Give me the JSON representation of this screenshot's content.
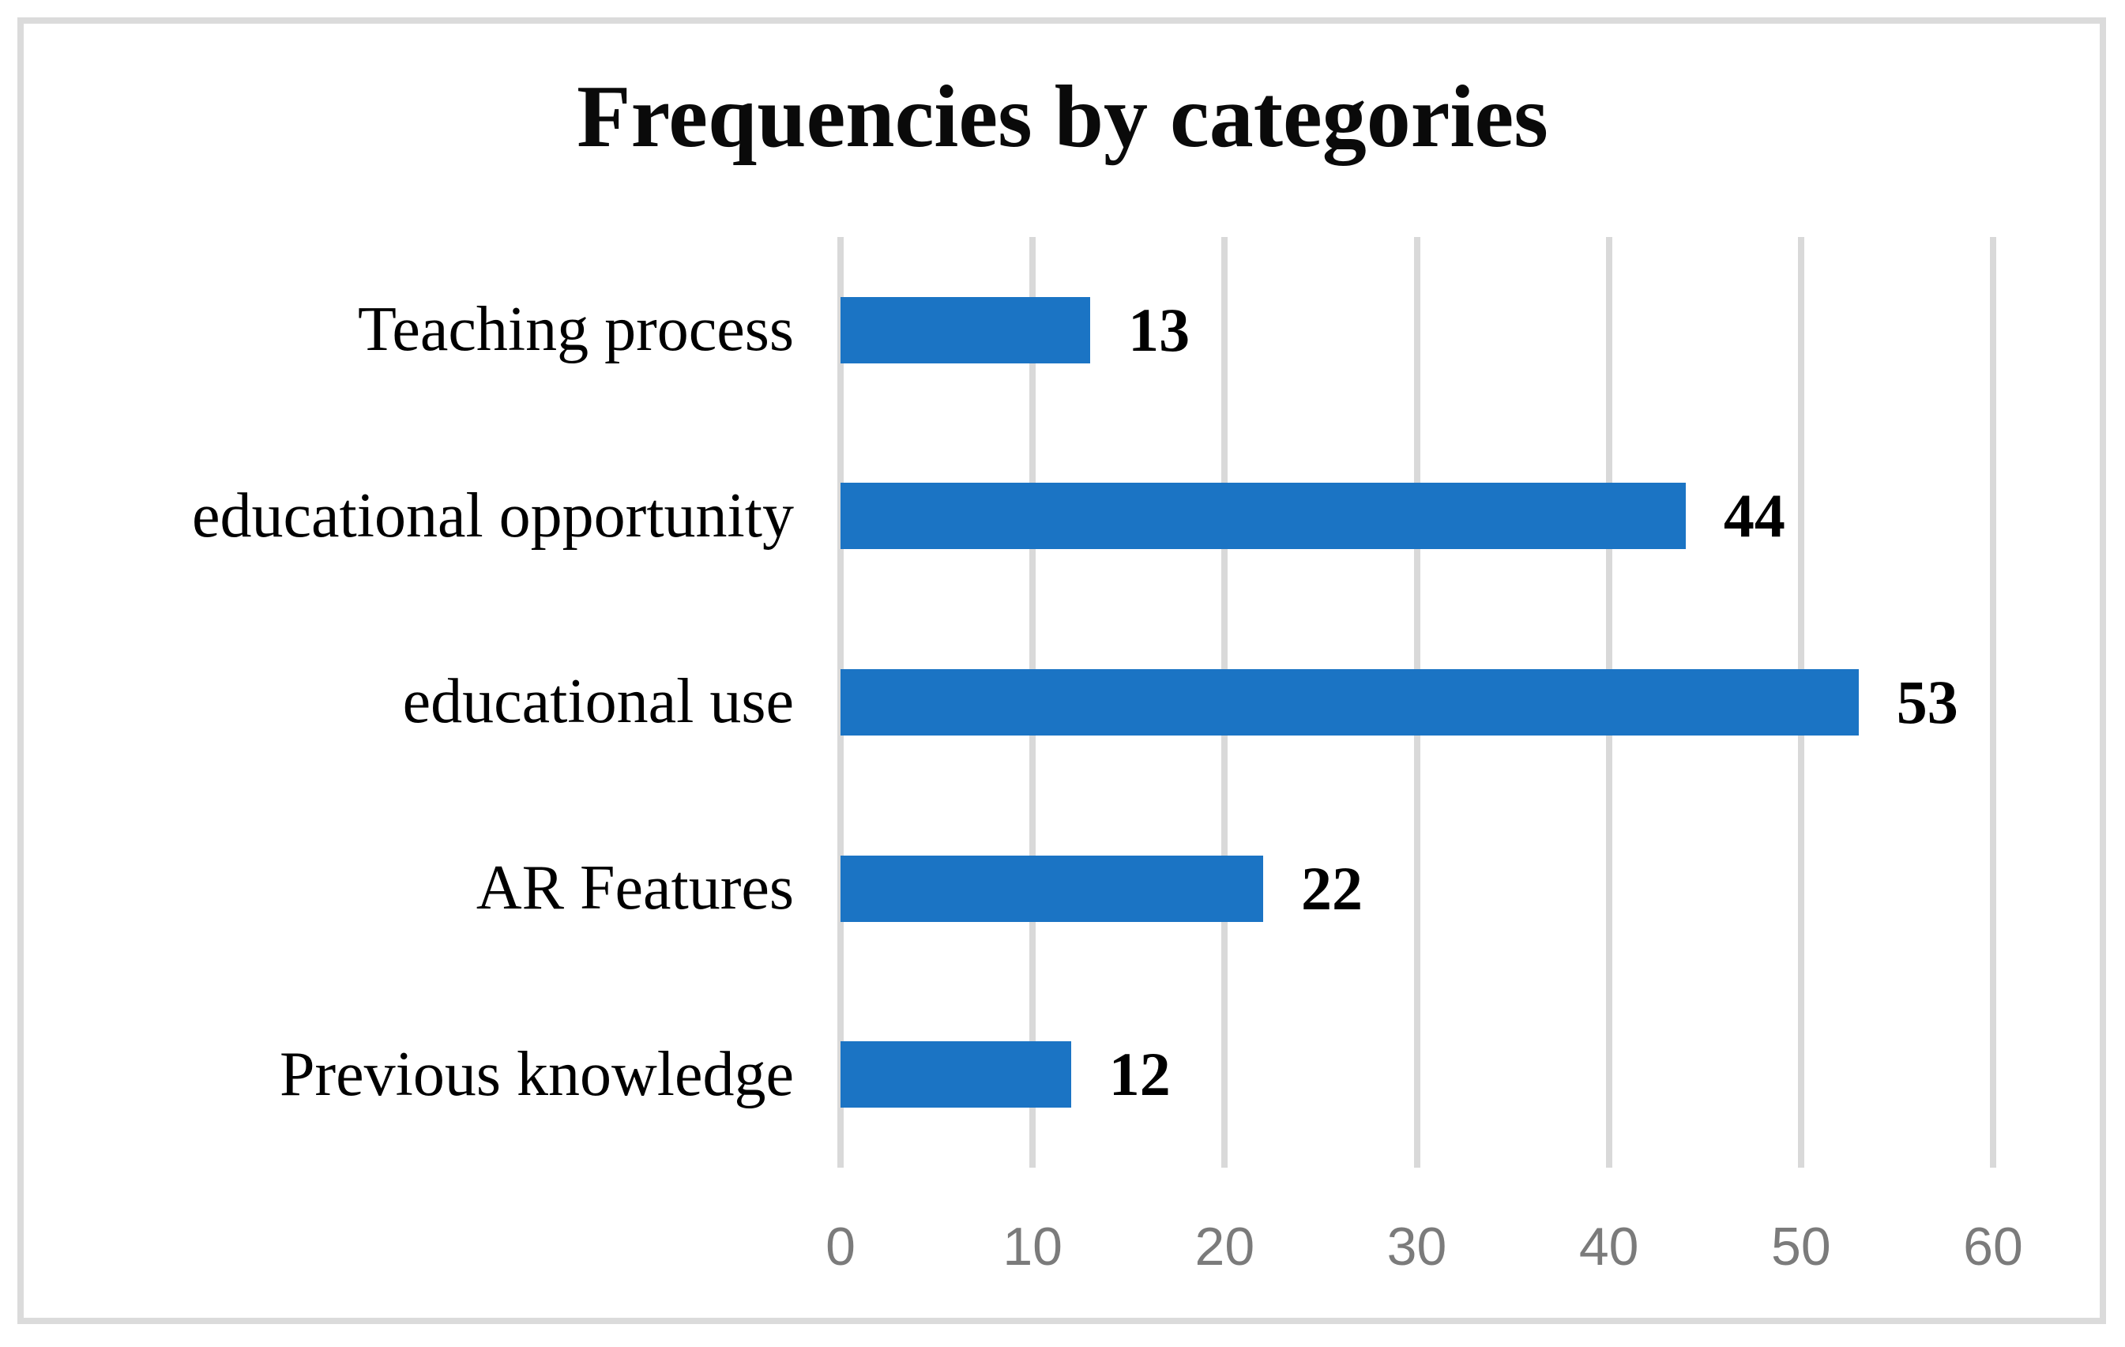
{
  "figure": {
    "background_color": "#FFFFFF",
    "frame_border_color": "#DBDBDB"
  },
  "chart_data": {
    "type": "bar",
    "orientation": "horizontal",
    "title": "Frequencies by categories",
    "categories": [
      "Teaching process",
      "educational opportunity",
      "educational use",
      "AR Features",
      "Previous knowledge"
    ],
    "values": [
      13,
      44,
      53,
      22,
      12
    ],
    "data_labels": [
      "13",
      "44",
      "53",
      "22",
      "12"
    ],
    "xlabel": "",
    "ylabel": "",
    "xlim": [
      0,
      60
    ],
    "x_ticks": [
      0,
      10,
      20,
      30,
      40,
      50,
      60
    ],
    "grid": "vertical gridlines on",
    "legend": "none",
    "bar_color": "#1B74C4",
    "gridline_color": "#D9D9D9",
    "tick_label_color": "#7B7B7B",
    "value_label_color": "#000000",
    "category_label_color": "#000000",
    "title_color": "#0A0A0A"
  }
}
